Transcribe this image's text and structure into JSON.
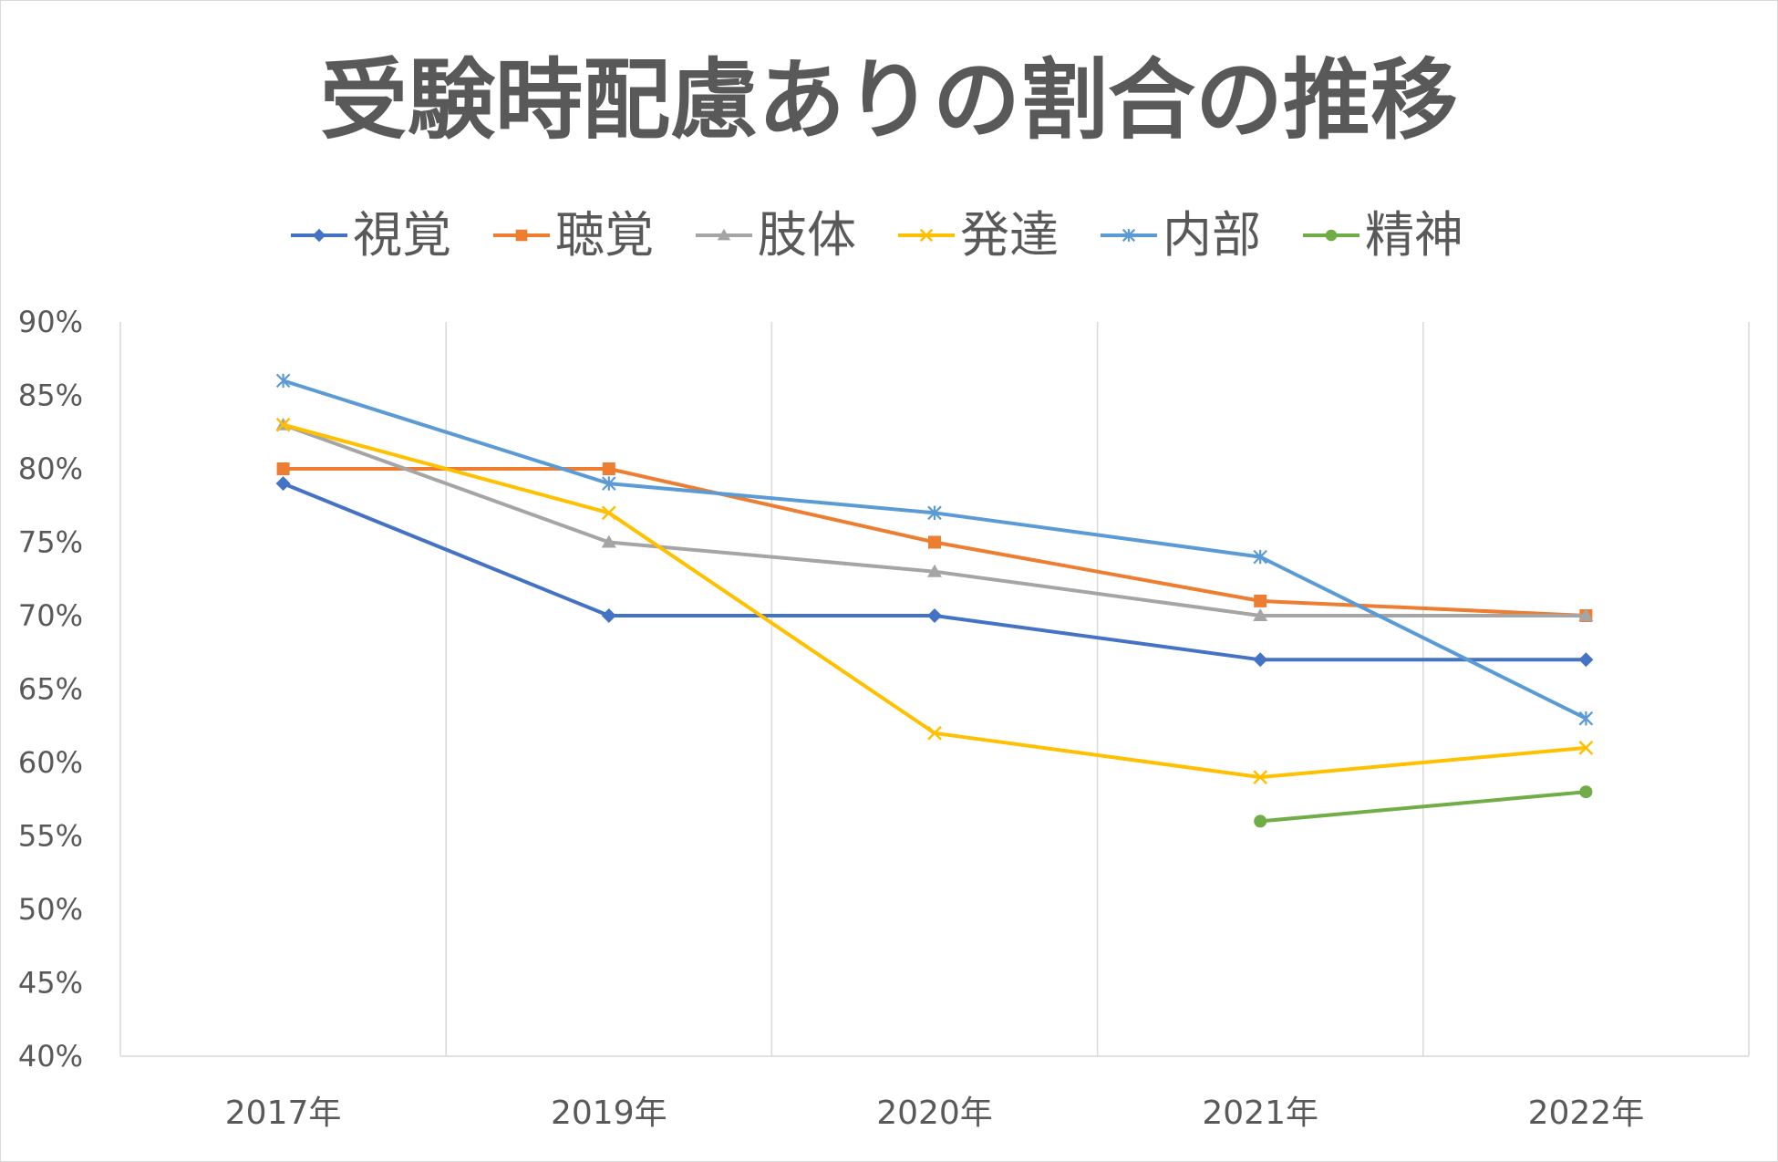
{
  "chart_data": {
    "type": "line",
    "title": "受験時配慮ありの割合の推移",
    "categories": [
      "2017年",
      "2019年",
      "2020年",
      "2021年",
      "2022年"
    ],
    "y_ticks": [
      "40%",
      "45%",
      "50%",
      "55%",
      "60%",
      "65%",
      "70%",
      "75%",
      "80%",
      "85%",
      "90%"
    ],
    "ylim": [
      40,
      90
    ],
    "y_unit": "%",
    "grid": {
      "vertical": true,
      "horizontal": false
    },
    "legend_position": "top",
    "series": [
      {
        "name": "視覚",
        "color": "#4472C4",
        "marker": "diamond",
        "values": [
          79,
          70,
          70,
          67,
          67
        ]
      },
      {
        "name": "聴覚",
        "color": "#ED7D31",
        "marker": "square",
        "values": [
          80,
          80,
          75,
          71,
          70
        ]
      },
      {
        "name": "肢体",
        "color": "#A5A5A5",
        "marker": "triangle",
        "values": [
          83,
          75,
          73,
          70,
          70
        ]
      },
      {
        "name": "発達",
        "color": "#FFC000",
        "marker": "x",
        "values": [
          83,
          77,
          62,
          59,
          61
        ]
      },
      {
        "name": "内部",
        "color": "#5B9BD5",
        "marker": "star",
        "values": [
          86,
          79,
          77,
          74,
          63
        ]
      },
      {
        "name": "精神",
        "color": "#70AD47",
        "marker": "circle",
        "values": [
          null,
          null,
          null,
          56,
          58
        ]
      }
    ]
  }
}
